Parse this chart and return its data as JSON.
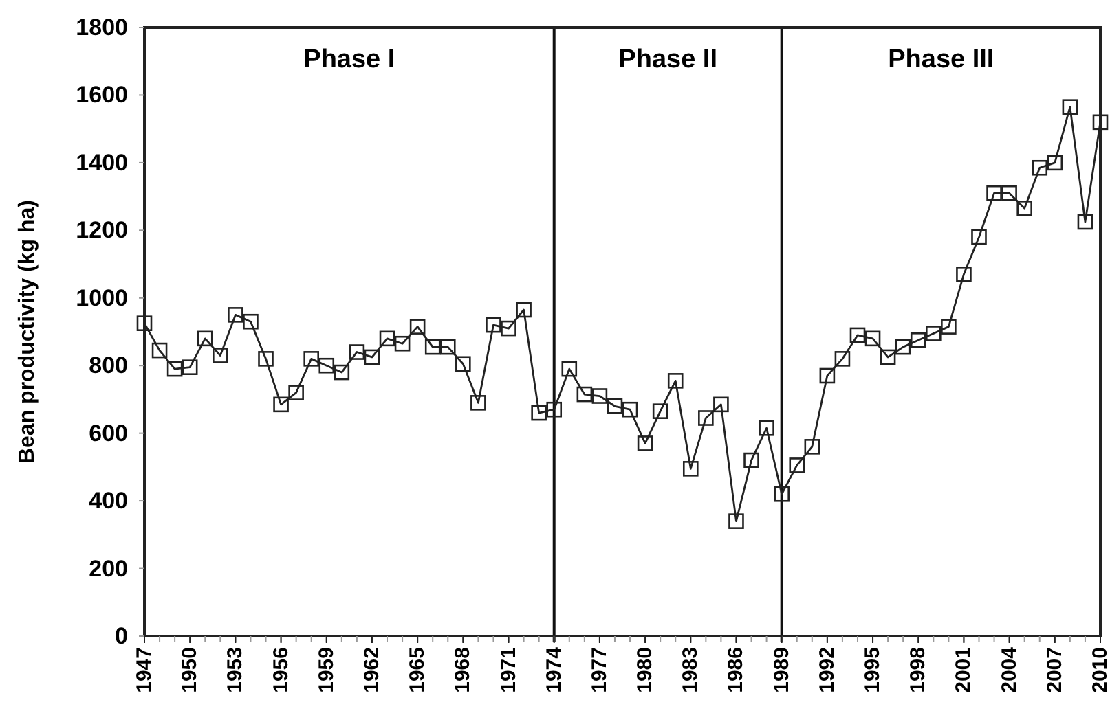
{
  "chart_data": {
    "type": "line",
    "ylabel": "Bean productivity (kg ha)",
    "x": [
      1947,
      1948,
      1949,
      1950,
      1951,
      1952,
      1953,
      1954,
      1955,
      1956,
      1957,
      1958,
      1959,
      1960,
      1961,
      1962,
      1963,
      1964,
      1965,
      1966,
      1967,
      1968,
      1969,
      1970,
      1971,
      1972,
      1973,
      1974,
      1975,
      1976,
      1977,
      1978,
      1979,
      1980,
      1981,
      1982,
      1983,
      1984,
      1985,
      1986,
      1987,
      1988,
      1989,
      1990,
      1991,
      1992,
      1993,
      1994,
      1995,
      1996,
      1997,
      1998,
      1999,
      2000,
      2001,
      2002,
      2003,
      2004,
      2005,
      2006,
      2007,
      2008,
      2009,
      2010
    ],
    "series": [
      {
        "color": "#222222",
        "values": [
          925,
          845,
          790,
          795,
          880,
          830,
          950,
          930,
          820,
          685,
          720,
          820,
          800,
          780,
          840,
          825,
          880,
          865,
          915,
          855,
          855,
          805,
          690,
          920,
          910,
          965,
          660,
          670,
          790,
          715,
          710,
          680,
          670,
          570,
          665,
          755,
          495,
          645,
          685,
          340,
          520,
          615,
          420,
          505,
          560,
          770,
          820,
          890,
          880,
          825,
          855,
          875,
          895,
          915,
          1070,
          1180,
          1310,
          1310,
          1265,
          1385,
          1400,
          1565,
          1225,
          1520
        ]
      }
    ],
    "xlim": [
      1947,
      2010
    ],
    "xticks": [
      1947,
      1950,
      1953,
      1956,
      1959,
      1962,
      1965,
      1968,
      1971,
      1974,
      1977,
      1980,
      1983,
      1986,
      1989,
      1992,
      1995,
      1998,
      2001,
      2004,
      2007,
      2010
    ],
    "ylim": [
      0,
      1800
    ],
    "yticks": [
      0,
      200,
      400,
      600,
      800,
      1000,
      1200,
      1400,
      1600,
      1800
    ],
    "ref_lines": [
      {
        "axis": "x",
        "value": 1974
      },
      {
        "axis": "x",
        "value": 1989
      }
    ],
    "annotations": [
      "Phase I",
      "Phase II",
      "Phase III"
    ],
    "marker": "square",
    "line_style": "solid",
    "grid": false
  }
}
